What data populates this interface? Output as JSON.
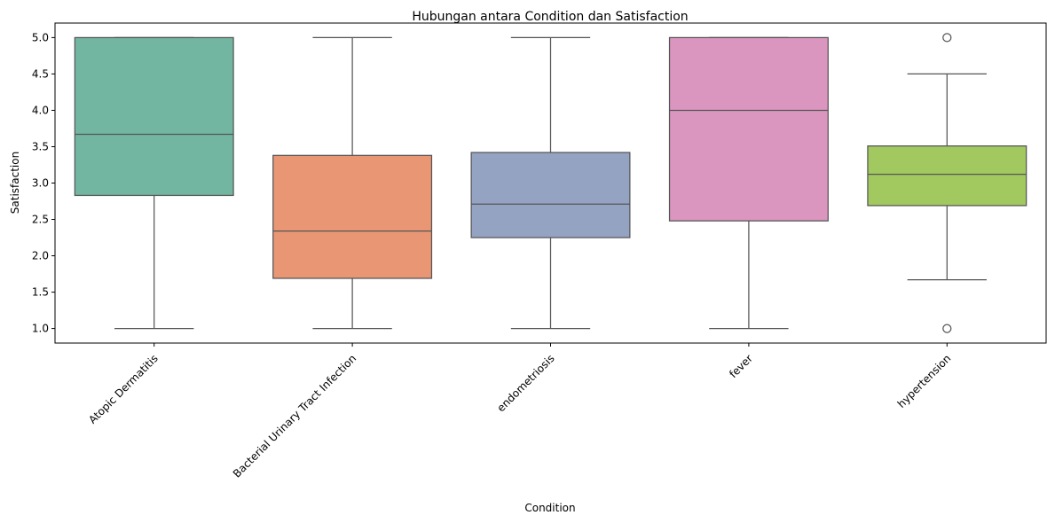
{
  "chart_data": {
    "type": "box",
    "title": "Hubungan antara Condition dan Satisfaction",
    "xlabel": "Condition",
    "ylabel": "Satisfaction",
    "ylim": [
      0.8,
      5.2
    ],
    "yticks": [
      "1.0",
      "1.5",
      "2.0",
      "2.5",
      "3.0",
      "3.5",
      "4.0",
      "4.5",
      "5.0"
    ],
    "grid": false,
    "categories": [
      "Atopic Dermatitis",
      "Bacterial Urinary Tract Infection",
      "endometriosis",
      "fever",
      "hypertension"
    ],
    "boxes": [
      {
        "category": "Atopic Dermatitis",
        "whisker_low": 1.0,
        "q1": 2.83,
        "median": 3.67,
        "q3": 5.0,
        "whisker_high": 5.0,
        "outliers": [],
        "color": "#72b6a1"
      },
      {
        "category": "Bacterial Urinary Tract Infection",
        "whisker_low": 1.0,
        "q1": 1.69,
        "median": 2.34,
        "q3": 3.38,
        "whisker_high": 5.0,
        "outliers": [],
        "color": "#e99675"
      },
      {
        "category": "endometriosis",
        "whisker_low": 1.0,
        "q1": 2.25,
        "median": 2.71,
        "q3": 3.42,
        "whisker_high": 5.0,
        "outliers": [],
        "color": "#95a3c3"
      },
      {
        "category": "fever",
        "whisker_low": 1.0,
        "q1": 2.48,
        "median": 4.0,
        "q3": 5.0,
        "whisker_high": 5.0,
        "outliers": [],
        "color": "#db96c0"
      },
      {
        "category": "hypertension",
        "whisker_low": 1.67,
        "q1": 2.69,
        "median": 3.12,
        "q3": 3.51,
        "whisker_high": 4.5,
        "outliers": [
          1.0,
          5.0
        ],
        "color": "#a1c960"
      }
    ],
    "line_color": "#555555"
  }
}
